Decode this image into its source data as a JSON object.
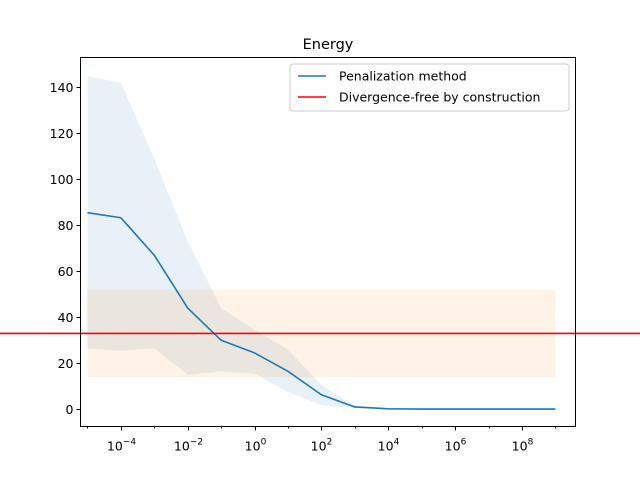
{
  "chart_data": {
    "type": "line",
    "title": "Energy",
    "xlabel": "",
    "ylabel": "",
    "xscale": "log",
    "x_tick_exponents": [
      -4,
      -2,
      0,
      2,
      4,
      6,
      8
    ],
    "x_tick_base": "10",
    "xlim": [
      6.2e-06,
      4000000000
    ],
    "ylim": [
      -7.5,
      153
    ],
    "y_ticks": [
      0,
      20,
      40,
      60,
      80,
      100,
      120,
      140
    ],
    "grid": false,
    "legend_position": "top-right",
    "series": [
      {
        "name": "Penalization method",
        "color": "#1f77b4",
        "band_color": "#1f77b4",
        "band_opacity": 0.1,
        "x": [
          1e-05,
          0.0001,
          0.001,
          0.01,
          0.1,
          1,
          10,
          100,
          1000,
          10000,
          100000,
          1000000,
          10000000,
          100000000,
          1000000000
        ],
        "y": [
          85.5,
          83.3,
          67,
          44,
          30,
          24.5,
          16.5,
          6.3,
          1,
          0.2,
          0.1,
          0.1,
          0.1,
          0.1,
          0.1
        ],
        "y_lower": [
          26.5,
          25.5,
          26.5,
          15,
          16.5,
          15.5,
          7.5,
          1.8,
          0.5,
          0.1,
          0.1,
          0.1,
          0.1,
          0.1,
          0.1
        ],
        "y_upper": [
          145,
          142,
          109,
          73,
          44,
          34.5,
          26,
          10.5,
          1.5,
          0.3,
          0.2,
          0.2,
          0.2,
          0.2,
          0.2
        ]
      },
      {
        "name": "Divergence-free by construction",
        "color": "#ff0000",
        "band_color": "#ff7f0e",
        "band_opacity": 0.1,
        "y": 33,
        "band_x": [
          1e-05,
          1000000000
        ],
        "y_lower": 14,
        "y_upper": 52
      }
    ]
  }
}
